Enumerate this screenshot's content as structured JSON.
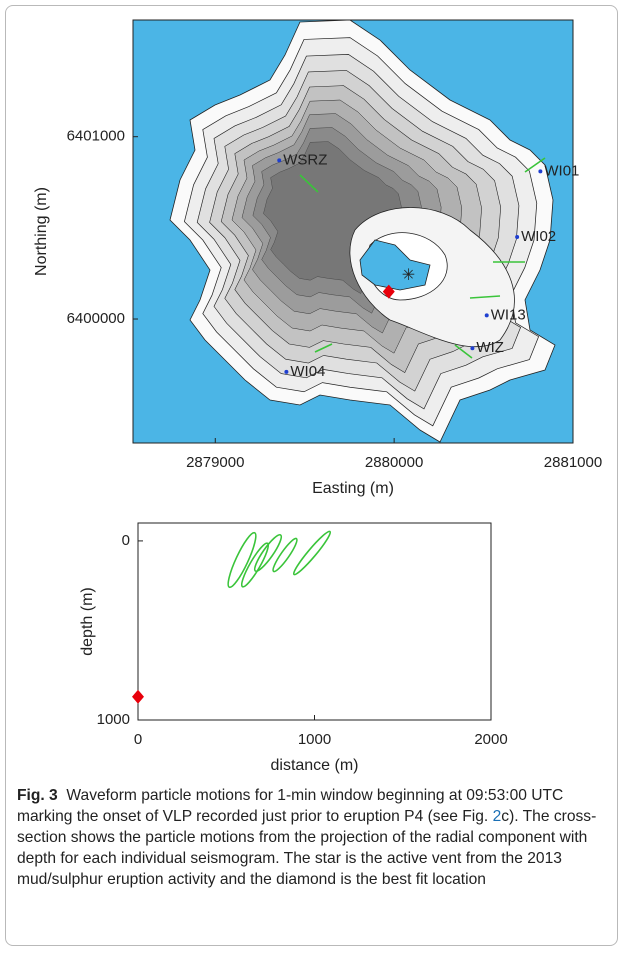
{
  "chart_data": [
    {
      "type": "map",
      "xlabel": "Easting (m)",
      "ylabel": "Northing (m)",
      "xlim": [
        2878540,
        2881000
      ],
      "ylim": [
        6399320,
        6401640
      ],
      "xticks": [
        2879000,
        2880000,
        2881000
      ],
      "yticks": [
        6400000,
        6401000
      ],
      "stations": [
        {
          "name": "WSRZ",
          "x": 2879380,
          "y": 6400870
        },
        {
          "name": "WI01",
          "x": 2880840,
          "y": 6400810
        },
        {
          "name": "WI02",
          "x": 2880710,
          "y": 6400450
        },
        {
          "name": "WI13",
          "x": 2880540,
          "y": 6400020
        },
        {
          "name": "WIZ",
          "x": 2880460,
          "y": 6399840
        },
        {
          "name": "WI04",
          "x": 2879420,
          "y": 6399710
        }
      ],
      "vent": {
        "x": 2880080,
        "y": 6400240,
        "color": "#d9302c"
      },
      "location": {
        "x": 2879970,
        "y": 6400150,
        "color": "#e8000b"
      }
    },
    {
      "type": "cross-section",
      "xlabel": "distance (m)",
      "ylabel": "depth (m)",
      "xlim": [
        0,
        2000
      ],
      "ylim": [
        1000,
        -100
      ],
      "xticks": [
        0,
        1000,
        2000
      ],
      "yticks": [
        0,
        1000
      ],
      "location": {
        "x": 0,
        "y": 870,
        "color": "#e8000b"
      }
    }
  ],
  "caption": {
    "label": "Fig. 3",
    "text_before": "Waveform particle motions for 1-min window beginning at 09:53:00 UTC marking the onset of VLP recorded just prior to eruption P4 (see Fig. ",
    "link": "2",
    "text_after": "c). The cross-section shows the particle motions from the projection of the radial component with depth for each individual seismogram. The star is the active vent from the 2013 mud/sulphur eruption activity and the diamond is the best fit location"
  }
}
